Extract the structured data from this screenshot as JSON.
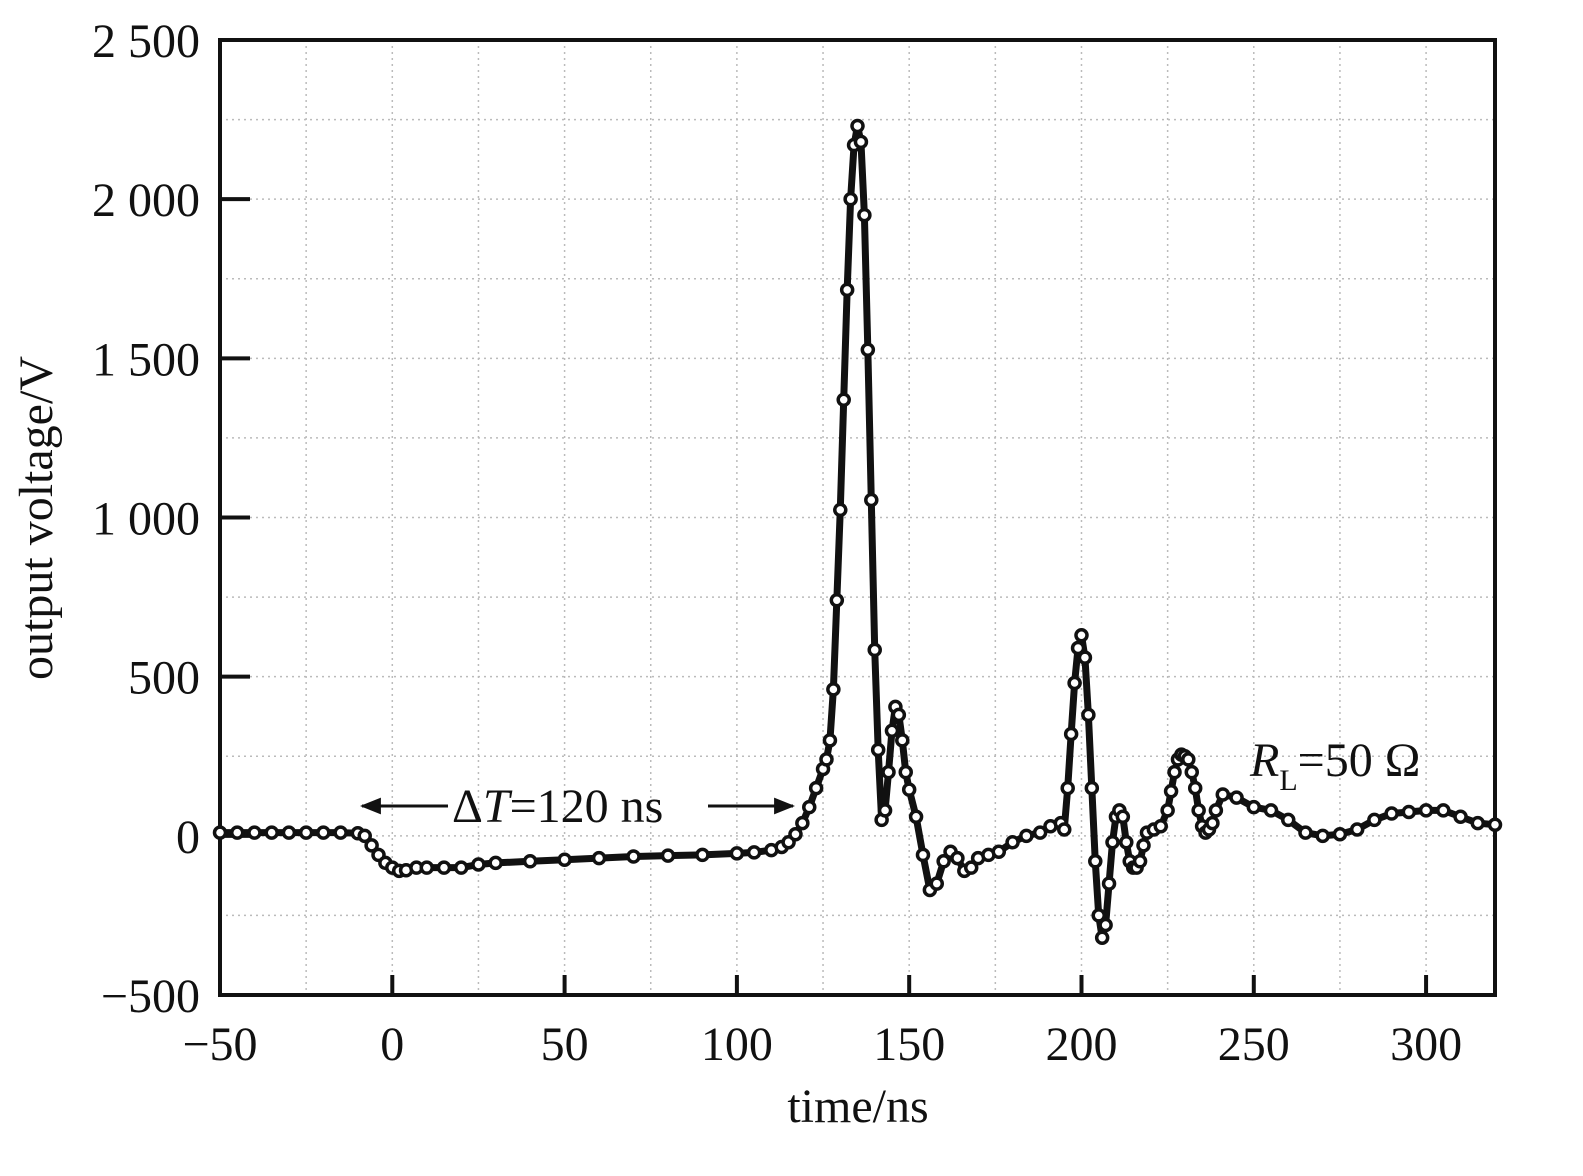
{
  "chart_data": {
    "type": "line",
    "xlabel": "time/ns",
    "ylabel": "output voltage/V",
    "annotations": [
      [
        "Δ",
        "T",
        "=120 ns"
      ],
      [
        "R",
        "L",
        "=50 Ω"
      ]
    ],
    "color": "#111111",
    "markers": true,
    "grid": true,
    "xlim": [
      -50,
      320
    ],
    "ylim": [
      -500,
      2500
    ],
    "xticks": [
      {
        "value": -50,
        "label": "−50"
      },
      0,
      50,
      100,
      150,
      200,
      250,
      300
    ],
    "yticks": [
      {
        "value": -500,
        "label": "−500"
      },
      0,
      500,
      {
        "value": 1000,
        "label": "1 000"
      },
      {
        "value": 1500,
        "label": "1 500"
      },
      {
        "value": 2000,
        "label": "2 000"
      },
      {
        "value": 2500,
        "label": "2 500"
      }
    ],
    "xminorticks": [
      -25,
      25,
      75,
      125,
      175,
      225,
      275
    ],
    "yminorticks": [
      -250,
      250,
      750,
      1250,
      1750,
      2250
    ],
    "x": [
      -50,
      -45,
      -40,
      -35,
      -30,
      -25,
      -20,
      -15,
      -10,
      -8,
      -6,
      -4,
      -2,
      0,
      2,
      4,
      7,
      10,
      15,
      20,
      25,
      30,
      40,
      50,
      60,
      70,
      80,
      90,
      100,
      105,
      110,
      113,
      115,
      117,
      119,
      121,
      123,
      125,
      126,
      127,
      128,
      129,
      130,
      131,
      132,
      133,
      134,
      135,
      136,
      137,
      138,
      139,
      140,
      141,
      142,
      143,
      144,
      145,
      146,
      147,
      148,
      149,
      150,
      152,
      154,
      156,
      158,
      160,
      162,
      164,
      166,
      168,
      170,
      173,
      176,
      180,
      184,
      188,
      191,
      194,
      195,
      196,
      197,
      198,
      199,
      200,
      201,
      202,
      203,
      204,
      205,
      206,
      207,
      208,
      209,
      210,
      211,
      212,
      213,
      214,
      215,
      216,
      217,
      218,
      219,
      221,
      223,
      225,
      226,
      227,
      228,
      229,
      230,
      231,
      232,
      233,
      234,
      235,
      236,
      237,
      238,
      239,
      241,
      245,
      250,
      255,
      260,
      265,
      270,
      275,
      280,
      285,
      290,
      295,
      300,
      305,
      310,
      315,
      320
    ],
    "values": [
      10,
      10,
      10,
      10,
      10,
      10,
      10,
      10,
      8,
      0,
      -30,
      -60,
      -85,
      -100,
      -110,
      -108,
      -100,
      -100,
      -100,
      -100,
      -90,
      -85,
      -80,
      -75,
      -70,
      -65,
      -62,
      -60,
      -55,
      -52,
      -45,
      -35,
      -20,
      5,
      40,
      90,
      150,
      210,
      240,
      300,
      460,
      740,
      1024,
      1370,
      1715,
      2000,
      2170,
      2230,
      2180,
      1950,
      1527,
      1055,
      584,
      270,
      50,
      80,
      200,
      330,
      405,
      380,
      300,
      200,
      145,
      60,
      -60,
      -170,
      -150,
      -80,
      -50,
      -70,
      -110,
      -100,
      -70,
      -60,
      -50,
      -20,
      0,
      10,
      30,
      40,
      20,
      150,
      320,
      480,
      590,
      630,
      560,
      380,
      150,
      -80,
      -250,
      -320,
      -280,
      -150,
      -20,
      60,
      80,
      60,
      -20,
      -80,
      -100,
      -100,
      -80,
      -30,
      10,
      20,
      30,
      80,
      140,
      200,
      240,
      255,
      250,
      240,
      200,
      150,
      80,
      30,
      10,
      20,
      40,
      80,
      130,
      120,
      90,
      80,
      50,
      10,
      0,
      5,
      20,
      50,
      70,
      75,
      80,
      80,
      60,
      40,
      35
    ]
  }
}
